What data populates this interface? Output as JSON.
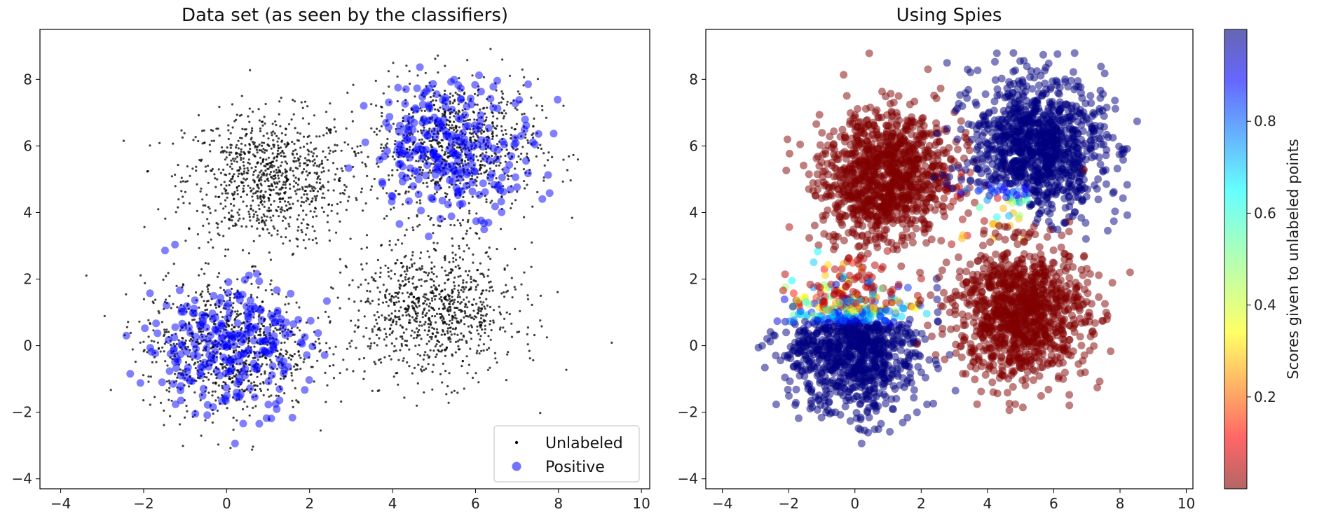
{
  "figure": {
    "background": "#ffffff"
  },
  "chart_data": [
    {
      "type": "scatter",
      "title": "Data set (as seen by the classifiers)",
      "xlim": [
        -4.5,
        10.2
      ],
      "ylim": [
        -4.3,
        9.5
      ],
      "xticks": [
        -4,
        -2,
        0,
        2,
        4,
        6,
        8,
        10
      ],
      "yticks": [
        -4,
        -2,
        0,
        2,
        4,
        6,
        8
      ],
      "xtick_labels": [
        "−4",
        "−2",
        "0",
        "2",
        "4",
        "6",
        "8",
        "10"
      ],
      "ytick_labels": [
        "−4",
        "−2",
        "0",
        "2",
        "4",
        "6",
        "8"
      ],
      "grid": false,
      "legend": {
        "placement": "lower-right",
        "entries": [
          "Unlabeled",
          "Positive"
        ]
      },
      "clusters": [
        {
          "name": "upper-left",
          "center": [
            1.0,
            5.0
          ],
          "std": 1.0,
          "labeled_positive": false
        },
        {
          "name": "upper-right",
          "center": [
            5.5,
            6.0
          ],
          "std": 1.0,
          "labeled_positive": true
        },
        {
          "name": "lower-left",
          "center": [
            0.0,
            0.0
          ],
          "std": 1.0,
          "labeled_positive": true
        },
        {
          "name": "lower-right",
          "center": [
            5.0,
            1.0
          ],
          "std": 1.0,
          "labeled_positive": false
        }
      ],
      "series": [
        {
          "name": "Unlabeled",
          "color": "#000000",
          "marker": "small-dot"
        },
        {
          "name": "Positive",
          "color": "#0000ff",
          "marker": "circle",
          "alpha": 0.5
        }
      ]
    },
    {
      "type": "scatter",
      "title": "Using Spies",
      "xlim": [
        -4.5,
        10.2
      ],
      "ylim": [
        -4.3,
        9.5
      ],
      "xticks": [
        -4,
        -2,
        0,
        2,
        4,
        6,
        8,
        10
      ],
      "yticks": [
        -4,
        -2,
        0,
        2,
        4,
        6,
        8
      ],
      "xtick_labels": [
        "−4",
        "−2",
        "0",
        "2",
        "4",
        "6",
        "8",
        "10"
      ],
      "ytick_labels": [
        "−4",
        "−2",
        "0",
        "2",
        "4",
        "6",
        "8"
      ],
      "grid": false,
      "colormap": "jet_r",
      "color_range": [
        0.0,
        1.0
      ],
      "colorbar": {
        "label": "Scores given to unlabeled points",
        "ticks": [
          0.2,
          0.4,
          0.6,
          0.8
        ],
        "tick_labels": [
          "0.2",
          "0.4",
          "0.6",
          "0.8"
        ]
      },
      "cluster_scores": [
        {
          "name": "upper-left",
          "center": [
            1.0,
            5.0
          ],
          "score": 0.0
        },
        {
          "name": "upper-right",
          "center": [
            5.5,
            6.0
          ],
          "score": 1.0
        },
        {
          "name": "lower-left",
          "center": [
            0.0,
            0.0
          ],
          "score": 1.0
        },
        {
          "name": "lower-right",
          "center": [
            5.0,
            1.0
          ],
          "score": 0.0
        }
      ]
    }
  ]
}
